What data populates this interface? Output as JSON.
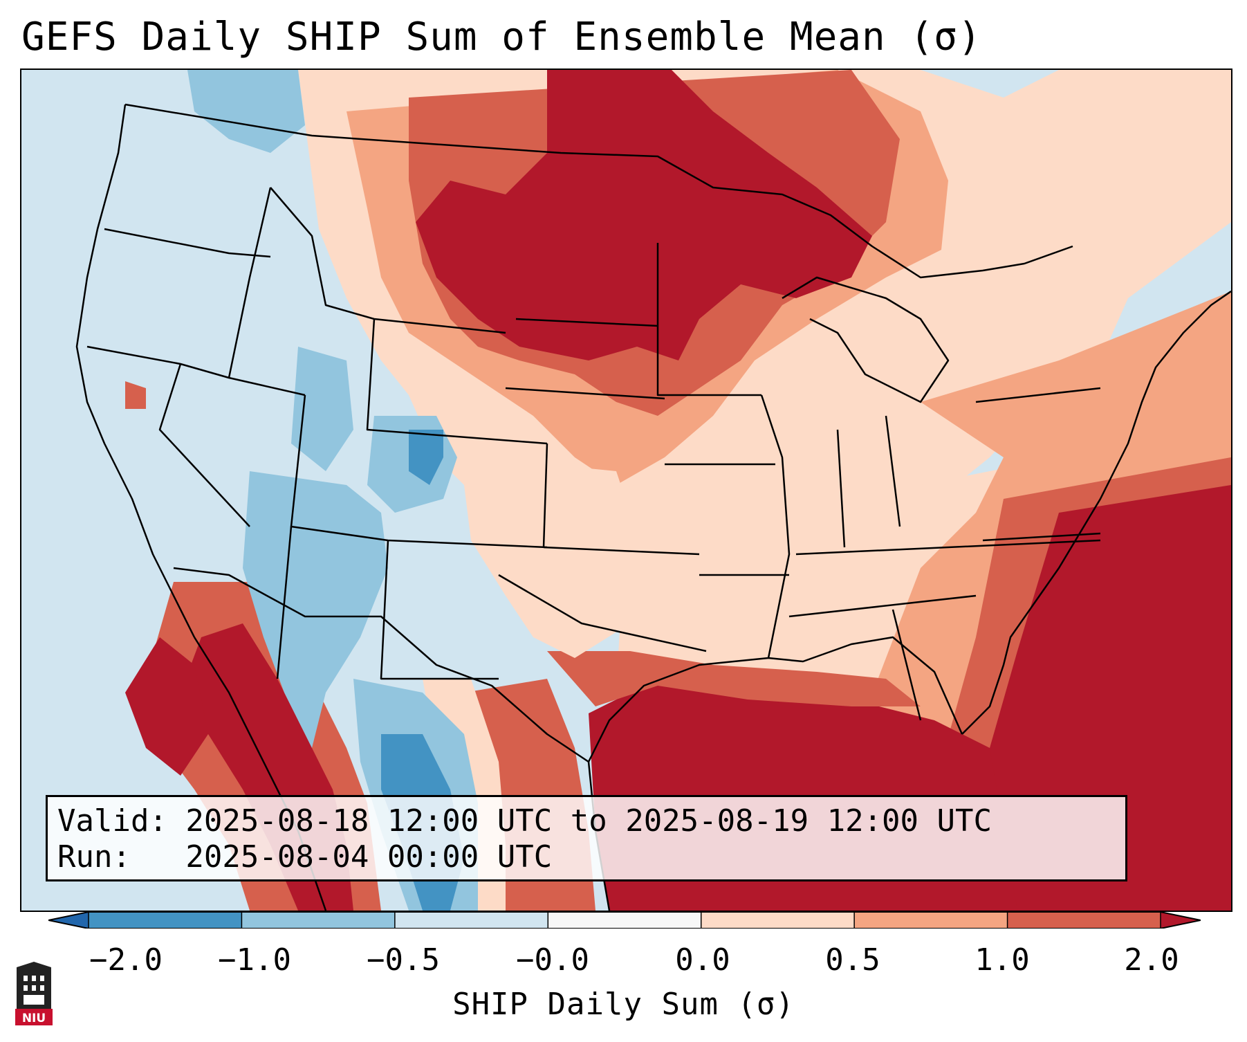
{
  "title": "GEFS Daily SHIP Sum of Ensemble Mean (σ)",
  "info": {
    "valid_line": "Valid: 2025-08-18 12:00 UTC to 2025-08-19 12:00 UTC",
    "run_line": "Run:   2025-08-04 00:00 UTC"
  },
  "colorbar": {
    "label": "SHIP Daily Sum (σ)",
    "extend": "both",
    "tick_labels": [
      "−2.0",
      "−1.0",
      "−0.5",
      "−0.0",
      "0.0",
      "0.5",
      "1.0",
      "2.0"
    ],
    "bins": [
      {
        "range": "< -2.0",
        "color": "#2166ac"
      },
      {
        "range": "-2.0 to -1.0",
        "color": "#4393c3"
      },
      {
        "range": "-1.0 to -0.5",
        "color": "#92c5de"
      },
      {
        "range": "-0.5 to -0.0",
        "color": "#d1e5f0"
      },
      {
        "range": "-0.0 to 0.0",
        "color": "#f7f7f7"
      },
      {
        "range": "0.0 to 0.5",
        "color": "#fddbc7"
      },
      {
        "range": "0.5 to 1.0",
        "color": "#f4a582"
      },
      {
        "range": "1.0 to 2.0",
        "color": "#d6604d"
      },
      {
        "range": "> 2.0",
        "color": "#b2182b"
      }
    ]
  },
  "logo": {
    "text": "NIU",
    "icon": "university-tower-icon"
  },
  "map": {
    "region": "Contiguous United States, southern Canada, Mexico and Gulf of Mexico",
    "background_color": "#d1e5f0"
  }
}
